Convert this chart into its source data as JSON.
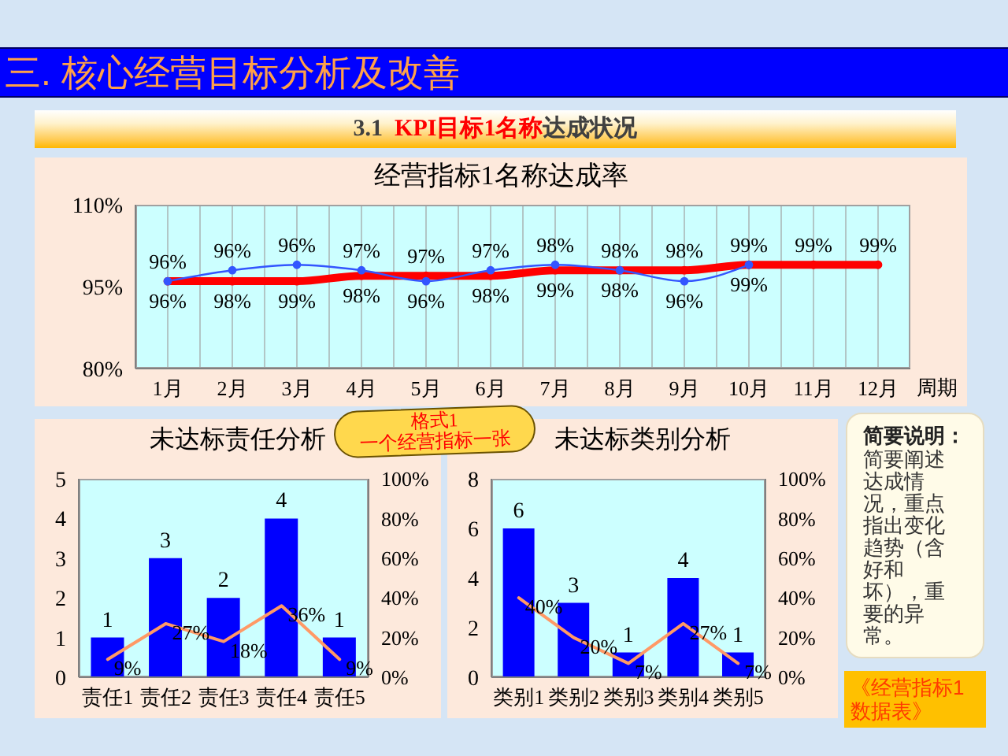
{
  "chart_data": [
    {
      "type": "other",
      "title": "三. 核心经营目标分析及改善",
      "subtitle": "3.1  KPI目标1名称达成状况",
      "annotations": [
        "格式1",
        "一个经营指标一张"
      ]
    },
    {
      "type": "line",
      "title": "经营指标1名称达成率",
      "xlabel": "周期",
      "categories": [
        "1月",
        "2月",
        "3月",
        "4月",
        "5月",
        "6月",
        "7月",
        "8月",
        "9月",
        "10月",
        "11月",
        "12月"
      ],
      "series": [
        {
          "color": "#ff0000",
          "values": [
            96,
            96,
            96,
            97,
            97,
            97,
            98,
            98,
            98,
            99,
            99,
            99
          ],
          "value_labels": [
            "96%",
            "96%",
            "96%",
            "97%",
            "97%",
            "97%",
            "98%",
            "98%",
            "98%",
            "99%",
            "99%",
            "99%"
          ]
        },
        {
          "color": "#3355ff",
          "values": [
            96,
            98,
            99,
            98,
            96,
            98,
            99,
            98,
            96,
            99,
            null,
            null
          ],
          "value_labels": [
            "96%",
            "98%",
            "99%",
            "98%",
            "96%",
            "98%",
            "99%",
            "98%",
            "96%",
            "99%",
            null,
            null
          ]
        }
      ],
      "ylim": [
        80,
        110
      ],
      "yticks": [
        {
          "value": 80,
          "label": "80%"
        },
        {
          "value": 95,
          "label": "95%"
        },
        {
          "value": 110,
          "label": "110%"
        }
      ],
      "grid": "x",
      "marker": "circle"
    },
    {
      "type": "bar",
      "title": "未达标责任分析",
      "categories": [
        "责任1",
        "责任2",
        "责任3",
        "责任4",
        "责任5"
      ],
      "series": [
        {
          "color": "#0000ff",
          "values": [
            1,
            3,
            2,
            4,
            1
          ],
          "value_labels": [
            "1",
            "3",
            "2",
            "4",
            "1"
          ]
        },
        {
          "type": "line",
          "axis": "y2",
          "color": "#ff9966",
          "values": [
            9,
            27,
            18,
            36,
            9
          ],
          "value_labels": [
            "9%",
            "27%",
            "18%",
            "36%",
            "9%"
          ]
        }
      ],
      "ylim": [
        0,
        5
      ],
      "yticks": [
        0,
        1,
        2,
        3,
        4,
        5
      ],
      "y2lim": [
        0,
        100
      ],
      "y2ticks": [
        {
          "value": 0,
          "label": "0%"
        },
        {
          "value": 20,
          "label": "20%"
        },
        {
          "value": 40,
          "label": "40%"
        },
        {
          "value": 60,
          "label": "60%"
        },
        {
          "value": 80,
          "label": "80%"
        },
        {
          "value": 100,
          "label": "100%"
        }
      ]
    },
    {
      "type": "bar",
      "title": "未达标类别分析",
      "categories": [
        "类别1",
        "类别2",
        "类别3",
        "类别4",
        "类别5"
      ],
      "series": [
        {
          "color": "#0000ff",
          "values": [
            6,
            3,
            1,
            4,
            1
          ],
          "value_labels": [
            "6",
            "3",
            "1",
            "4",
            "1"
          ]
        },
        {
          "type": "line",
          "axis": "y2",
          "color": "#ff9966",
          "values": [
            40,
            20,
            7,
            27,
            7
          ],
          "value_labels": [
            "40%",
            "20%",
            "7%",
            "27%",
            "7%"
          ]
        }
      ],
      "ylim": [
        0,
        8
      ],
      "yticks": [
        0,
        2,
        4,
        6,
        8
      ],
      "y2lim": [
        0,
        100
      ],
      "y2ticks": [
        {
          "value": 0,
          "label": "0%"
        },
        {
          "value": 20,
          "label": "20%"
        },
        {
          "value": 40,
          "label": "40%"
        },
        {
          "value": 60,
          "label": "60%"
        },
        {
          "value": 80,
          "label": "80%"
        },
        {
          "value": 100,
          "label": "100%"
        }
      ]
    },
    {
      "type": "other",
      "title": "简要说明：",
      "annotations": [
        "简要阐述达成情况，重点指出变化趋势（含好和坏），重要的异常。",
        "《经营指标1数据表》"
      ]
    }
  ]
}
